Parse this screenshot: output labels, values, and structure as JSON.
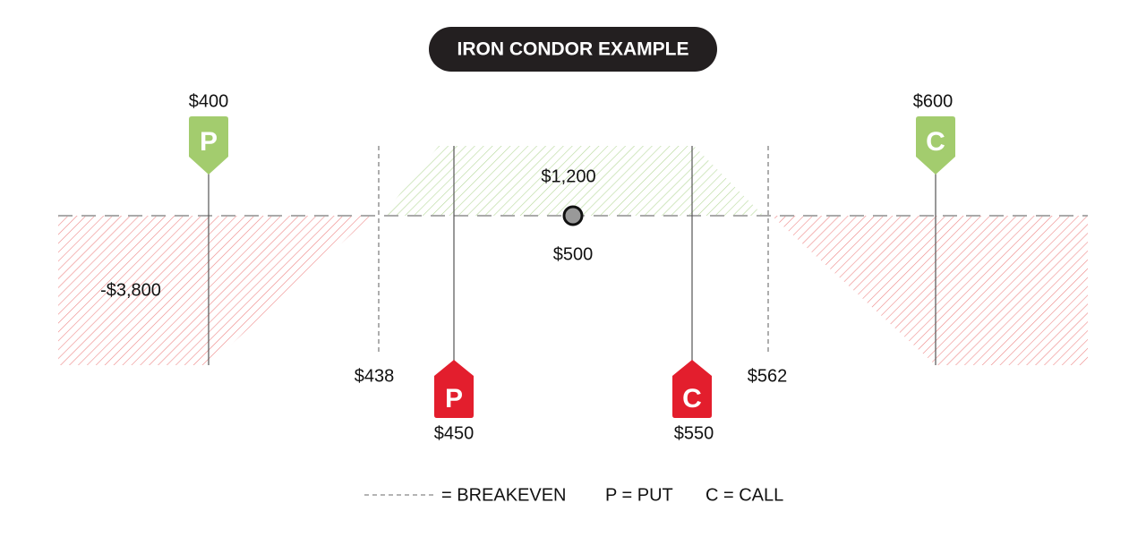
{
  "title": "IRON CONDOR EXAMPLE",
  "markers": [
    {
      "letter": "P",
      "price": "$400"
    },
    {
      "letter": "P",
      "price": "$450"
    },
    {
      "letter": "C",
      "price": "$550"
    },
    {
      "letter": "C",
      "price": "$600"
    }
  ],
  "breakevens": [
    "$438",
    "$562"
  ],
  "max_profit": "$1,200",
  "max_loss": "-$3,800",
  "current_price": "$500",
  "legend": {
    "breakeven": "= BREAKEVEN",
    "put": "P = PUT",
    "call": "C = CALL"
  }
}
